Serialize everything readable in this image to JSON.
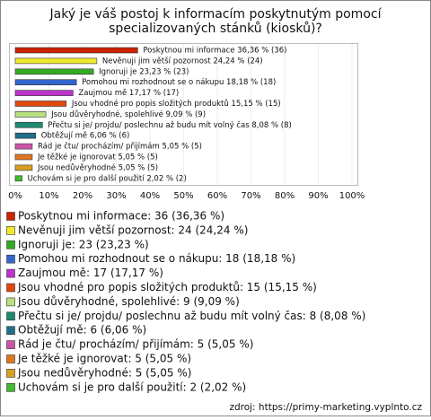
{
  "chart_data": {
    "type": "bar",
    "orientation": "horizontal",
    "title": [
      "Jaký je váš postoj k informacím poskytnutým pomocí",
      "specializovaných stánků (kiosků)?"
    ],
    "values": [
      36.36,
      24.24,
      23.23,
      18.18,
      17.17,
      15.15,
      9.09,
      8.08,
      6.06,
      5.05,
      5.05,
      5.05,
      2.02
    ],
    "value_labels": [
      "Poskytnou mi informace 36,36 % (36)",
      "Nevěnuji jim větší pozornost 24,24 % (24)",
      "Ignoruji je 23,23 % (23)",
      "Pomohou mi rozhodnout se o nákupu 18,18 % (18)",
      "Zaujmou mě 17,17 % (17)",
      "Jsou vhodné pro popis složitých produktů 15,15 % (15)",
      "Jsou důvěryhodné, spolehlivé 9,09 % (9)",
      "Přečtu si je/ projdu/ poslechnu až budu mít volný čas 8,08 % (8)",
      "Obtěžují mě 6,06 % (6)",
      "Rád je čtu/ procházím/ přijímám 5,05 % (5)",
      "Je těžké je ignorovat 5,05 % (5)",
      "Jsou nedůvěryhodné 5,05 % (5)",
      "Uchovám si je pro další použití 2,02 % (2)"
    ],
    "legend_labels": [
      "Poskytnou mi informace: 36 (36,36 %)",
      "Nevěnuji jim větší pozornost: 24 (24,24 %)",
      "Ignoruji je: 23 (23,23 %)",
      "Pomohou mi rozhodnout se o nákupu: 18 (18,18 %)",
      "Zaujmou mě: 17 (17,17 %)",
      "Jsou vhodné pro popis složitých produktů: 15 (15,15 %)",
      "Jsou důvěryhodné, spolehlivé: 9 (9,09 %)",
      "Přečtu si je/ projdu/ poslechnu až budu mít volný čas: 8 (8,08 %)",
      "Obtěžují mě: 6 (6,06 %)",
      "Rád je čtu/ procházím/ přijímám: 5 (5,05 %)",
      "Je těžké je ignorovat: 5 (5,05 %)",
      "Jsou nedůvěryhodné: 5 (5,05 %)",
      "Uchovám si je pro další použití: 2 (2,02 %)"
    ],
    "colors": [
      "#cc2200",
      "#f0e830",
      "#33aa22",
      "#3366cc",
      "#bb33cc",
      "#e04810",
      "#b8e080",
      "#1f8a70",
      "#1f6e8a",
      "#cc55aa",
      "#dd7722",
      "#d8a020",
      "#44bb33"
    ],
    "xlim": [
      0,
      100
    ],
    "xticks": [
      {
        "value": 0,
        "label": "0%"
      },
      {
        "value": 10,
        "label": "10%"
      },
      {
        "value": 20,
        "label": "20%"
      },
      {
        "value": 30,
        "label": "30%"
      },
      {
        "value": 40,
        "label": "40%"
      },
      {
        "value": 50,
        "label": "50%"
      },
      {
        "value": 60,
        "label": "60%"
      },
      {
        "value": 70,
        "label": "70%"
      },
      {
        "value": 80,
        "label": "80%"
      },
      {
        "value": 90,
        "label": "90%"
      },
      {
        "value": 100,
        "label": "100%"
      }
    ],
    "source": "zdroj: https://primy-marketing.vyplnto.cz"
  }
}
